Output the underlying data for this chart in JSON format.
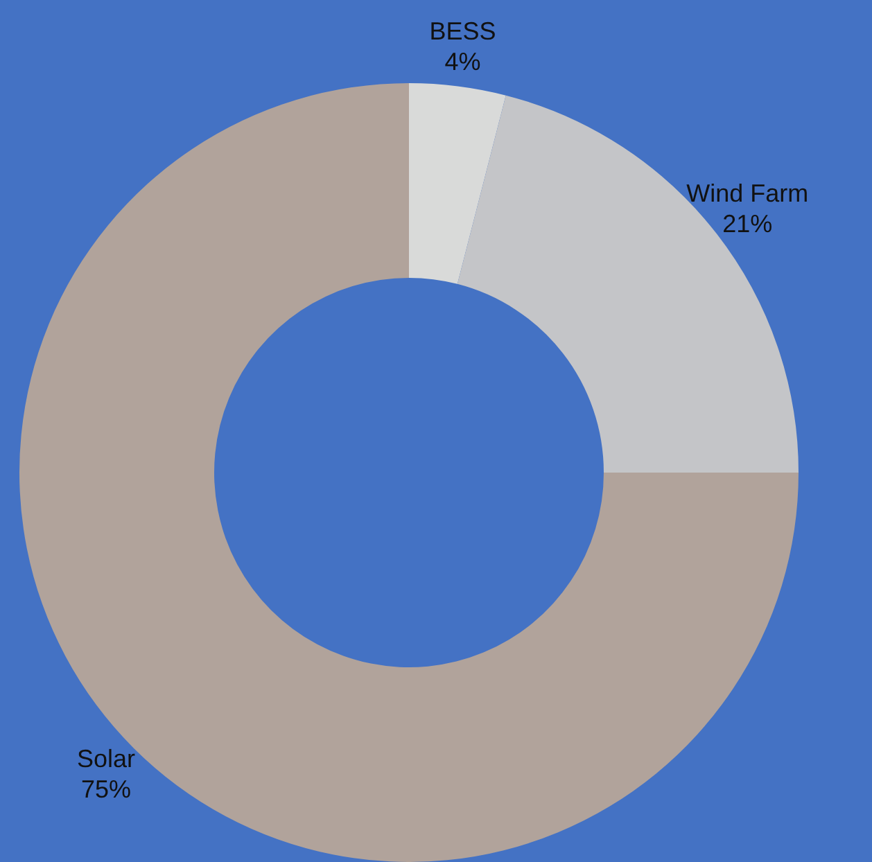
{
  "chart_data": {
    "type": "donut",
    "categories": [
      "BESS",
      "Wind Farm",
      "Solar"
    ],
    "values": [
      4,
      21,
      75
    ],
    "value_labels": [
      "4%",
      "21%",
      "75%"
    ],
    "colors": [
      "#d9dad9",
      "#c4c5c8",
      "#b1a39b"
    ],
    "legend": false
  }
}
